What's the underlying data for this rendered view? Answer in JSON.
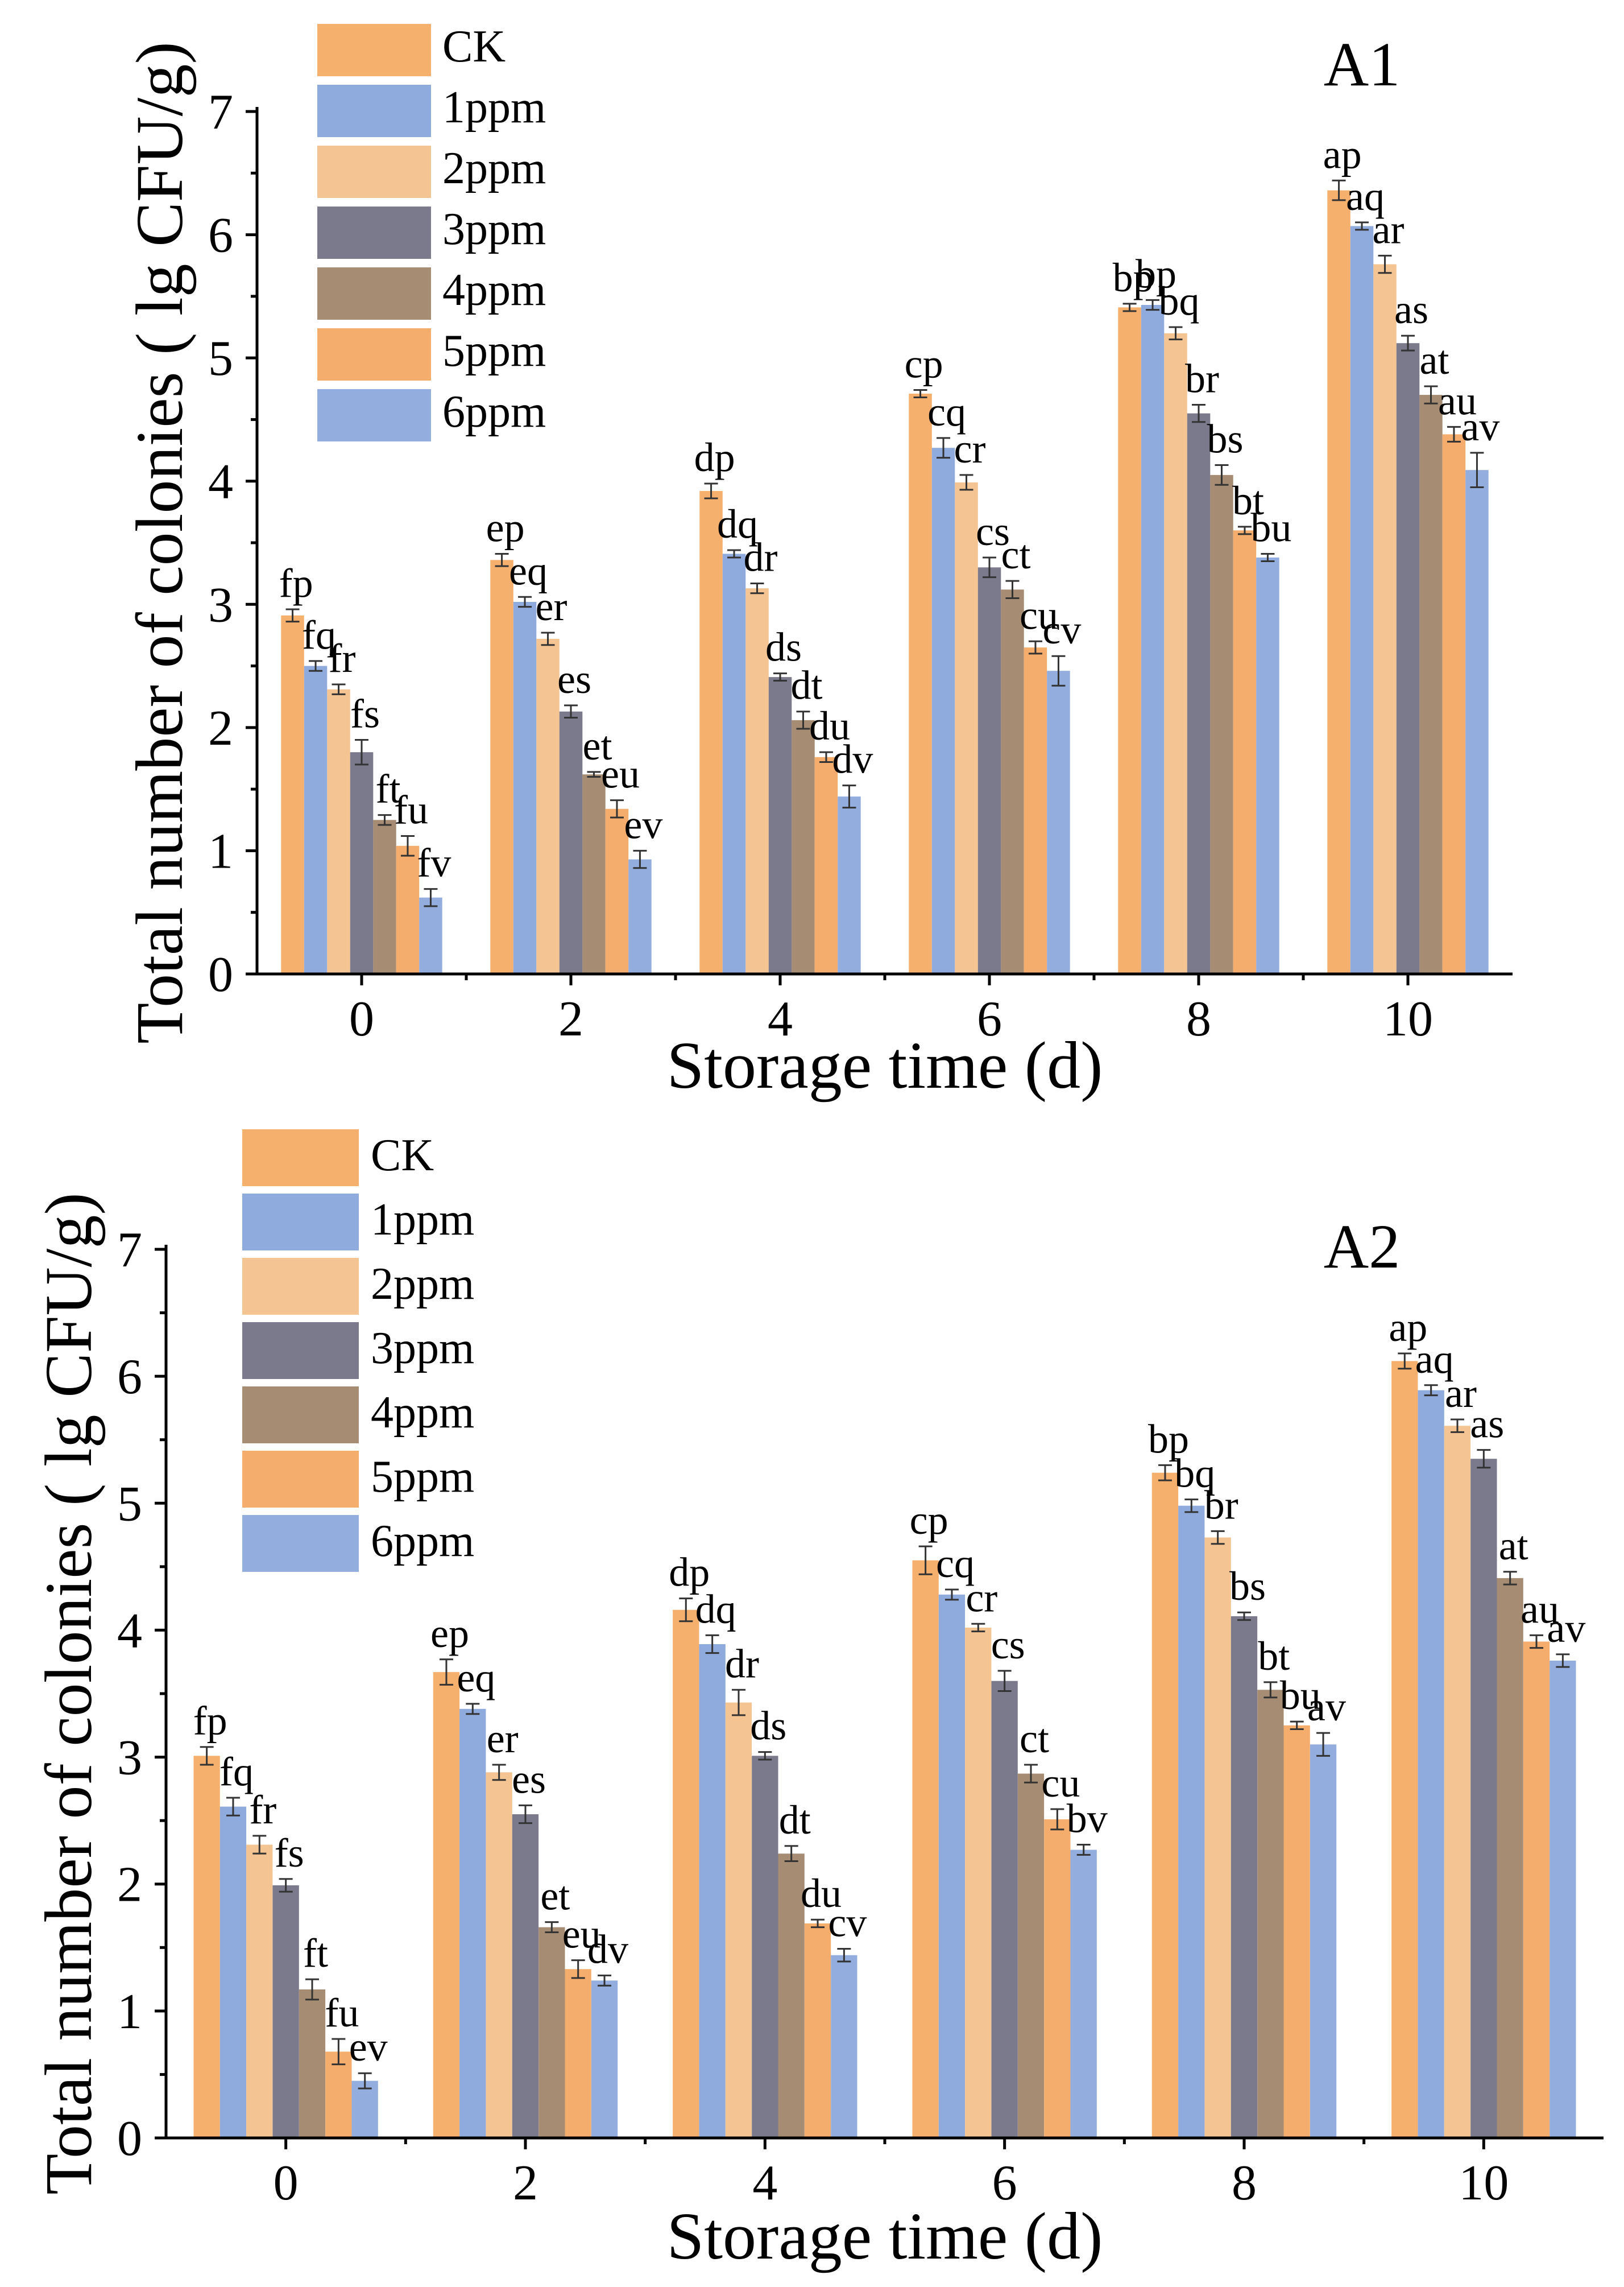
{
  "colors": {
    "CK": "#F5B06E",
    "1ppm": "#8FAADC",
    "2ppm": "#F4C593",
    "3ppm": "#7A7A8C",
    "4ppm": "#A58C72",
    "5ppm": "#F5AD6D",
    "6ppm": "#93ADDE"
  },
  "chart_data": [
    {
      "type": "bar",
      "panel_label": "A1",
      "xlabel": "Storage time (d)",
      "ylabel": "Total number of colonies ( lg CFU/g)",
      "ylim": [
        0,
        7
      ],
      "yticks": [
        "0",
        "1",
        "2",
        "3",
        "4",
        "5",
        "6",
        "7"
      ],
      "categories": [
        "0",
        "2",
        "4",
        "6",
        "8",
        "10"
      ],
      "legend_position": "top-left",
      "series": [
        {
          "name": "CK",
          "values": [
            2.91,
            3.36,
            3.92,
            4.71,
            5.41,
            6.36
          ],
          "errors": [
            0.05,
            0.05,
            0.06,
            0.03,
            0.03,
            0.08
          ],
          "labels": [
            "fp",
            "ep",
            "dp",
            "cp",
            "bp",
            "ap"
          ]
        },
        {
          "name": "1ppm",
          "values": [
            2.5,
            3.02,
            3.41,
            4.27,
            5.43,
            6.07
          ],
          "errors": [
            0.04,
            0.04,
            0.03,
            0.08,
            0.04,
            0.03
          ],
          "labels": [
            "fq",
            "eq",
            "dq",
            "cq",
            "bp",
            "aq"
          ]
        },
        {
          "name": "2ppm",
          "values": [
            2.31,
            2.72,
            3.13,
            3.99,
            5.2,
            5.76
          ],
          "errors": [
            0.04,
            0.05,
            0.04,
            0.06,
            0.05,
            0.07
          ],
          "labels": [
            "fr",
            "er",
            "dr",
            "cr",
            "bq",
            "ar"
          ]
        },
        {
          "name": "3ppm",
          "values": [
            1.8,
            2.13,
            2.41,
            3.3,
            4.55,
            5.12
          ],
          "errors": [
            0.1,
            0.05,
            0.03,
            0.08,
            0.07,
            0.06
          ],
          "labels": [
            "fs",
            "es",
            "ds",
            "cs",
            "br",
            "as"
          ]
        },
        {
          "name": "4ppm",
          "values": [
            1.25,
            1.62,
            2.06,
            3.12,
            4.05,
            4.7
          ],
          "errors": [
            0.04,
            0.02,
            0.07,
            0.07,
            0.08,
            0.07
          ],
          "labels": [
            "ft",
            "et",
            "dt",
            "ct",
            "bs",
            "at"
          ]
        },
        {
          "name": "5ppm",
          "values": [
            1.04,
            1.34,
            1.76,
            2.65,
            3.6,
            4.38
          ],
          "errors": [
            0.08,
            0.07,
            0.04,
            0.05,
            0.03,
            0.06
          ],
          "labels": [
            "fu",
            "eu",
            "du",
            "cu",
            "bt",
            "au"
          ]
        },
        {
          "name": "6ppm",
          "values": [
            0.62,
            0.93,
            1.44,
            2.46,
            3.38,
            4.09
          ],
          "errors": [
            0.07,
            0.07,
            0.09,
            0.12,
            0.03,
            0.14
          ],
          "labels": [
            "fv",
            "ev",
            "dv",
            "cv",
            "bu",
            "av"
          ]
        }
      ]
    },
    {
      "type": "bar",
      "panel_label": "A2",
      "xlabel": "Storage time (d)",
      "ylabel": "Total number of colonies ( lg CFU/g)",
      "ylim": [
        0,
        7
      ],
      "yticks": [
        "0",
        "1",
        "2",
        "3",
        "4",
        "5",
        "6",
        "7"
      ],
      "categories": [
        "0",
        "2",
        "4",
        "6",
        "8",
        "10"
      ],
      "legend_position": "top-left",
      "series": [
        {
          "name": "CK",
          "values": [
            3.01,
            3.67,
            4.16,
            4.55,
            5.24,
            6.12
          ],
          "errors": [
            0.07,
            0.1,
            0.09,
            0.11,
            0.06,
            0.06
          ],
          "labels": [
            "fp",
            "ep",
            "dp",
            "cp",
            "bp",
            "ap"
          ]
        },
        {
          "name": "1ppm",
          "values": [
            2.61,
            3.38,
            3.89,
            4.28,
            4.98,
            5.89
          ],
          "errors": [
            0.07,
            0.04,
            0.07,
            0.04,
            0.05,
            0.04
          ],
          "labels": [
            "fq",
            "eq",
            "dq",
            "cq",
            "bq",
            "aq"
          ]
        },
        {
          "name": "2ppm",
          "values": [
            2.31,
            2.88,
            3.43,
            4.02,
            4.73,
            5.61
          ],
          "errors": [
            0.07,
            0.06,
            0.1,
            0.03,
            0.05,
            0.05
          ],
          "labels": [
            "fr",
            "er",
            "dr",
            "cr",
            "br",
            "ar"
          ]
        },
        {
          "name": "3ppm",
          "values": [
            1.99,
            2.55,
            3.01,
            3.6,
            4.11,
            5.35
          ],
          "errors": [
            0.05,
            0.07,
            0.03,
            0.08,
            0.03,
            0.07
          ],
          "labels": [
            "fs",
            "es",
            "ds",
            "cs",
            "bs",
            "as"
          ]
        },
        {
          "name": "4ppm",
          "values": [
            1.17,
            1.66,
            2.24,
            2.87,
            3.53,
            4.41
          ],
          "errors": [
            0.08,
            0.04,
            0.06,
            0.07,
            0.06,
            0.05
          ],
          "labels": [
            "ft",
            "et",
            "dt",
            "ct",
            "bt",
            "at"
          ]
        },
        {
          "name": "5ppm",
          "values": [
            0.68,
            1.33,
            1.69,
            2.51,
            3.25,
            3.91
          ],
          "errors": [
            0.1,
            0.07,
            0.03,
            0.08,
            0.03,
            0.05
          ],
          "labels": [
            "fu",
            "eu",
            "du",
            "cu",
            "bu",
            "au"
          ]
        },
        {
          "name": "6ppm",
          "values": [
            0.45,
            1.24,
            1.44,
            2.27,
            3.1,
            3.76
          ],
          "errors": [
            0.06,
            0.04,
            0.05,
            0.04,
            0.09,
            0.05
          ],
          "labels": [
            "ev",
            "dv",
            "cv",
            "bv",
            "av",
            "av"
          ]
        }
      ]
    }
  ]
}
